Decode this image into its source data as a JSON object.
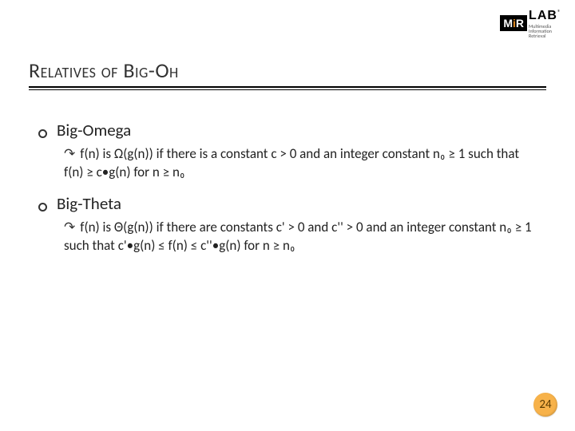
{
  "logo": {
    "mir_m": "M",
    "mir_i": "i",
    "mir_r": "R",
    "lab": "LAB",
    "sub1": "Multimedia",
    "sub2": "Information",
    "sub3": "Retrieval"
  },
  "title": "Relatives of Big-Oh",
  "items": [
    {
      "label": "Big-Omega",
      "detail": "f(n) is Ω(g(n)) if there is a constant c > 0 and an integer constant n₀ ≥ 1 such that f(n) ≥ c•g(n) for n ≥ n₀"
    },
    {
      "label": "Big-Theta",
      "detail": "f(n) is Θ(g(n)) if there are constants c' > 0 and c'' > 0 and an integer constant n₀ ≥ 1 such that c'•g(n) ≤ f(n) ≤ c''•g(n) for n ≥ n₀"
    }
  ],
  "page_number": "24",
  "colors": {
    "title_color": "#333333",
    "text_color": "#222222",
    "accent_orange": "#f7b24a",
    "logo_orange": "#e68a1e"
  }
}
